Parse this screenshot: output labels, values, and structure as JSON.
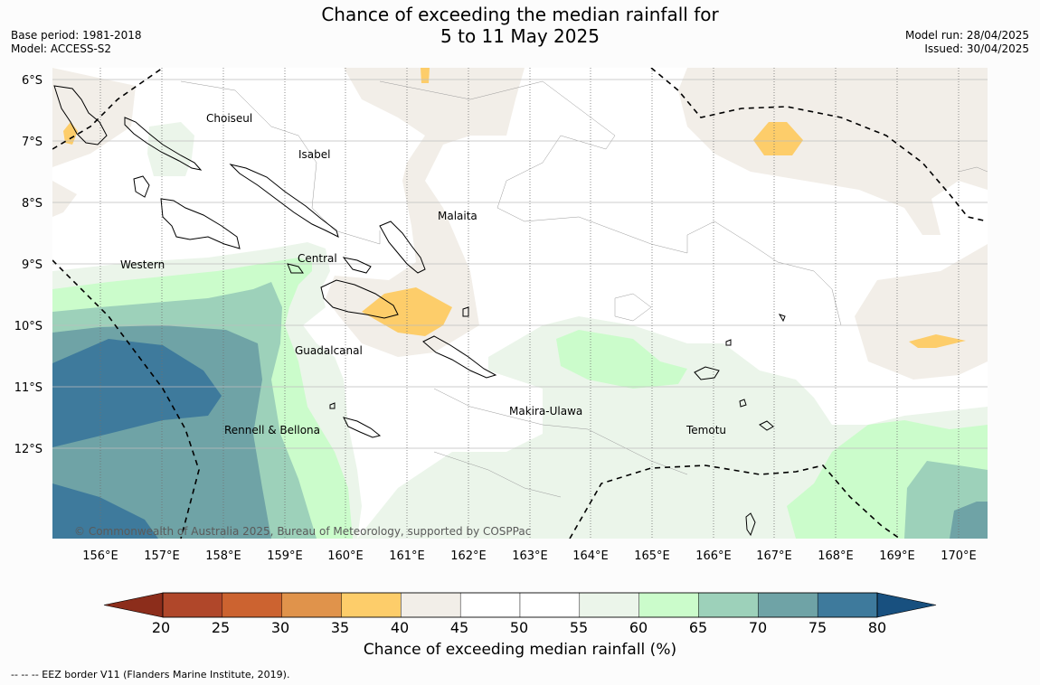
{
  "header": {
    "title_line1": "Chance of exceeding the median rainfall for",
    "title_line2": "5 to 11 May 2025",
    "base_period": "Base period: 1981-2018",
    "model": "Model: ACCESS-S2",
    "model_run": "Model run: 28/04/2025",
    "issued": "Issued: 30/04/2025"
  },
  "map": {
    "lat_labels": [
      "6°S",
      "7°S",
      "8°S",
      "9°S",
      "10°S",
      "11°S",
      "12°S"
    ],
    "lon_labels": [
      "156°E",
      "157°E",
      "158°E",
      "159°E",
      "160°E",
      "161°E",
      "162°E",
      "163°E",
      "164°E",
      "165°E",
      "166°E",
      "167°E",
      "168°E",
      "169°E",
      "170°E"
    ],
    "province_labels": {
      "choiseul": "Choiseul",
      "isabel": "Isabel",
      "malaita": "Malaita",
      "western": "Western",
      "central": "Central",
      "guadalcanal": "Guadalcanal",
      "makira": "Makira-Ulawa",
      "temotu": "Temotu",
      "rennell": "Rennell & Bellona"
    },
    "copyright": "© Commonwealth of Australia 2025, Bureau of Meteorology, supported by COSPPac"
  },
  "colorbar": {
    "ticks": [
      "20",
      "25",
      "30",
      "35",
      "40",
      "45",
      "50",
      "55",
      "60",
      "65",
      "70",
      "75",
      "80"
    ],
    "colors": [
      "#8c2d1b",
      "#b0472a",
      "#cc6330",
      "#e0934b",
      "#fdcd6a",
      "#f2eee8",
      "#ffffff",
      "#ffffff",
      "#ebf5ea",
      "#cbfccb",
      "#9dd1ba",
      "#6fa3a6",
      "#3e7a9c",
      "#18507f"
    ],
    "title": "Chance of exceeding median rainfall (%)"
  },
  "footer": "--  --  -- EEZ border V11 (Flanders Marine Institute, 2019)."
}
